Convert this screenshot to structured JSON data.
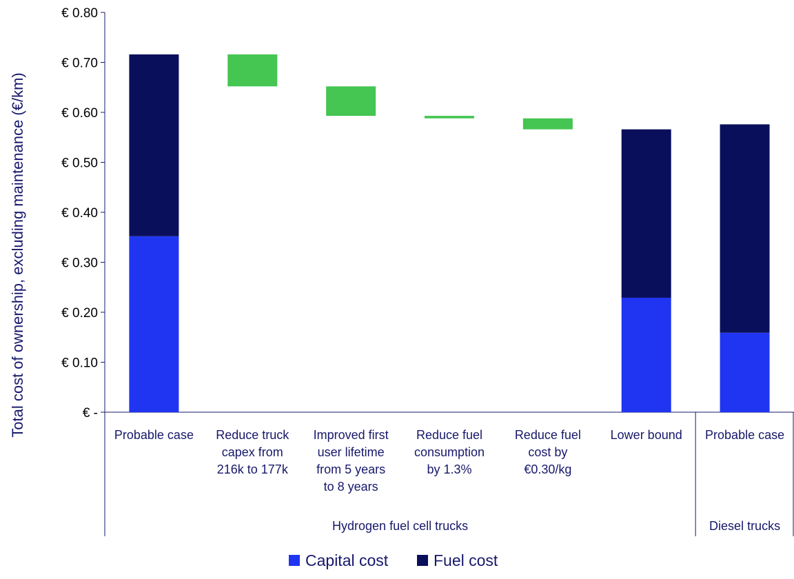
{
  "chart_data": {
    "type": "bar",
    "subtype": "waterfall-stacked",
    "ylabel": "Total cost of ownership, excluding maintenance (€/km)",
    "ylim": [
      0,
      0.8
    ],
    "y_ticks": [
      {
        "value": 0,
        "label": "€ -"
      },
      {
        "value": 0.1,
        "label": "€ 0.10"
      },
      {
        "value": 0.2,
        "label": "€ 0.20"
      },
      {
        "value": 0.3,
        "label": "€ 0.30"
      },
      {
        "value": 0.4,
        "label": "€ 0.40"
      },
      {
        "value": 0.5,
        "label": "€ 0.50"
      },
      {
        "value": 0.6,
        "label": "€ 0.60"
      },
      {
        "value": 0.7,
        "label": "€ 0.70"
      },
      {
        "value": 0.8,
        "label": "€ 0.80"
      }
    ],
    "grid": false,
    "legend_position": "bottom",
    "categories": [
      {
        "lines": [
          "Probable case"
        ],
        "kind": "stacked",
        "capital": 0.352,
        "fuel": 0.364
      },
      {
        "lines": [
          "Reduce truck",
          "capex from",
          "216k to 177k"
        ],
        "kind": "delta",
        "from": 0.716,
        "to": 0.652
      },
      {
        "lines": [
          "Improved first",
          "user lifetime",
          "from 5 years",
          "to 8 years"
        ],
        "kind": "delta",
        "from": 0.652,
        "to": 0.593
      },
      {
        "lines": [
          "Reduce fuel",
          "consumption",
          "by 1.3%"
        ],
        "kind": "delta",
        "from": 0.593,
        "to": 0.588
      },
      {
        "lines": [
          "Reduce fuel",
          "cost by",
          "€0.30/kg"
        ],
        "kind": "delta",
        "from": 0.588,
        "to": 0.566
      },
      {
        "lines": [
          "Lower bound"
        ],
        "kind": "stacked",
        "capital": 0.229,
        "fuel": 0.337
      },
      {
        "lines": [
          "Probable case"
        ],
        "kind": "stacked",
        "capital": 0.159,
        "fuel": 0.417
      }
    ],
    "groups": [
      {
        "label": "Hydrogen fuel cell trucks",
        "start": 0,
        "end": 5
      },
      {
        "label": "Diesel trucks",
        "start": 6,
        "end": 6
      }
    ],
    "series": [
      {
        "name": "Capital cost",
        "color": "#1f35f2"
      },
      {
        "name": "Fuel cost",
        "color": "#0a0f5c"
      }
    ],
    "delta_color": "#45c552",
    "axis_color": "#17186b"
  }
}
